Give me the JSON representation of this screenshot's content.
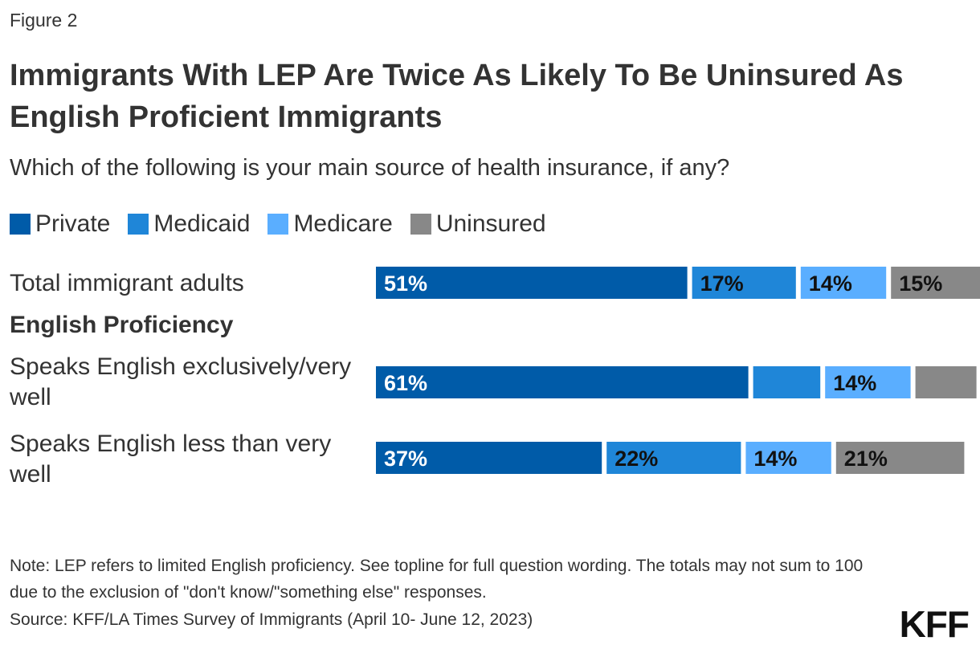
{
  "figure_label": "Figure 2",
  "chart_data": {
    "type": "bar",
    "orientation": "horizontal",
    "stacked": true,
    "title": "Immigrants With LEP Are Twice As Likely To Be Uninsured As English Proficient Immigrants",
    "subtitle": "Which of the following is your main source of health insurance, if any?",
    "xlim": [
      0,
      100
    ],
    "grid": false,
    "legend_position": "top-left",
    "series": [
      {
        "name": "Private",
        "color": "#005BA8",
        "values": [
          51,
          61,
          37
        ],
        "labels": [
          "51%",
          "61%",
          "37%"
        ]
      },
      {
        "name": "Medicaid",
        "color": "#1F86D8",
        "values": [
          17,
          11,
          22
        ],
        "labels": [
          "17%",
          "",
          "22%"
        ]
      },
      {
        "name": "Medicare",
        "color": "#5AAEFF",
        "values": [
          14,
          14,
          14
        ],
        "labels": [
          "14%",
          "14%",
          "14%"
        ]
      },
      {
        "name": "Uninsured",
        "color": "#888888",
        "values": [
          15,
          10,
          21
        ],
        "labels": [
          "15%",
          "",
          "21%"
        ]
      }
    ],
    "categories": [
      "Total immigrant adults",
      "Speaks English exclusively/very well",
      "Speaks English less than very well"
    ],
    "rows": [
      {
        "type": "bar",
        "label": "Total immigrant adults",
        "index": 0
      },
      {
        "type": "header",
        "label": "English Proficiency"
      },
      {
        "type": "bar",
        "label": "Speaks English exclusively/very well",
        "index": 1
      },
      {
        "type": "bar",
        "label": "Speaks English less than very well",
        "index": 2
      }
    ]
  },
  "note": "Note: LEP refers to limited English proficiency. See topline for full question wording. The totals may not sum to 100 due to the exclusion of \"don't know/\"something else\" responses.",
  "source": "Source: KFF/LA Times Survey of Immigrants (April 10- June 12, 2023)",
  "logo": "KFF"
}
